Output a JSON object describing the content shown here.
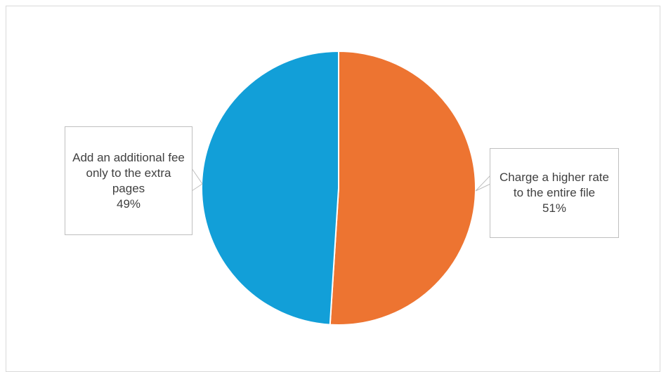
{
  "chart_data": {
    "type": "pie",
    "title": "",
    "slices": [
      {
        "label": "Charge a higher rate to the entire file",
        "value": 51,
        "pct_label": "51%",
        "color": "#ED7431"
      },
      {
        "label": "Add an additional fee only to the extra pages",
        "value": 49,
        "pct_label": "49%",
        "color": "#129FD8"
      }
    ],
    "start_angle_deg": 0,
    "direction": "clockwise",
    "legend": "none",
    "border_color": "#FFFFFF"
  }
}
